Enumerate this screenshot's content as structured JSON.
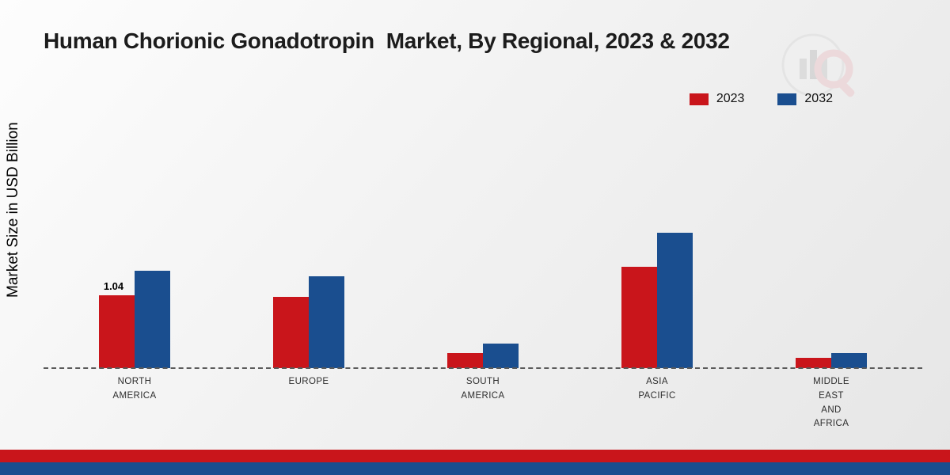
{
  "title": "Human Chorionic Gonadotropin  Market, By Regional, 2023 & 2032",
  "y_axis_label": "Market Size in USD Billion",
  "legend": [
    {
      "label": "2023",
      "color": "#c9151b"
    },
    {
      "label": "2032",
      "color": "#1a4e8f"
    }
  ],
  "chart_data": {
    "type": "bar",
    "title": "Human Chorionic Gonadotropin  Market, By Regional, 2023 & 2032",
    "ylabel": "Market Size in USD Billion",
    "xlabel": "",
    "categories": [
      "NORTH AMERICA",
      "EUROPE",
      "SOUTH AMERICA",
      "ASIA PACIFIC",
      "MIDDLE EAST AND AFRICA"
    ],
    "series": [
      {
        "name": "2023",
        "color": "#c9151b",
        "values": [
          1.04,
          1.02,
          0.22,
          1.45,
          0.15
        ]
      },
      {
        "name": "2032",
        "color": "#1a4e8f",
        "values": [
          1.39,
          1.31,
          0.35,
          1.93,
          0.22
        ]
      }
    ],
    "annotations": [
      {
        "series_index": 0,
        "category_index": 0,
        "text": "1.04"
      }
    ],
    "ylim": [
      0,
      2.2
    ],
    "grid": false,
    "legend_position": "top-right",
    "baseline_style": "dashed"
  },
  "footer": {
    "stripes": [
      "#c9151b",
      "#1a4e8f"
    ]
  }
}
